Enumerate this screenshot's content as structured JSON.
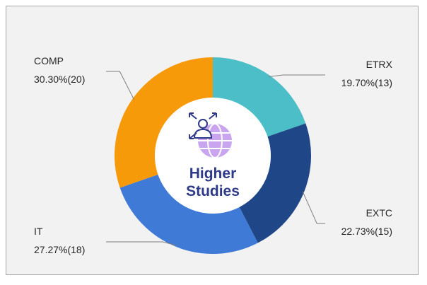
{
  "chart_data": {
    "type": "pie",
    "variant": "donut",
    "center_text": [
      "Higher",
      "Studies"
    ],
    "center_icon": "person-globe-arrows-icon",
    "categories": [
      "ETRX",
      "EXTC",
      "IT",
      "COMP"
    ],
    "values": [
      13,
      15,
      18,
      20
    ],
    "labels": [
      {
        "name": "ETRX",
        "value_text": "19.70%(13)"
      },
      {
        "name": "EXTC",
        "value_text": "22.73%(15)"
      },
      {
        "name": "IT",
        "value_text": "27.27%(18)"
      },
      {
        "name": "COMP",
        "value_text": "30.30%(20)"
      }
    ],
    "colors": {
      "ETRX": "#4bbec8",
      "EXTC": "#1f4787",
      "IT": "#3f7ad6",
      "COMP": "#f79a0a"
    },
    "center_title_color": "#2e3a87",
    "icon_color": "#c9a5f0",
    "grid": false,
    "legend": "none"
  }
}
